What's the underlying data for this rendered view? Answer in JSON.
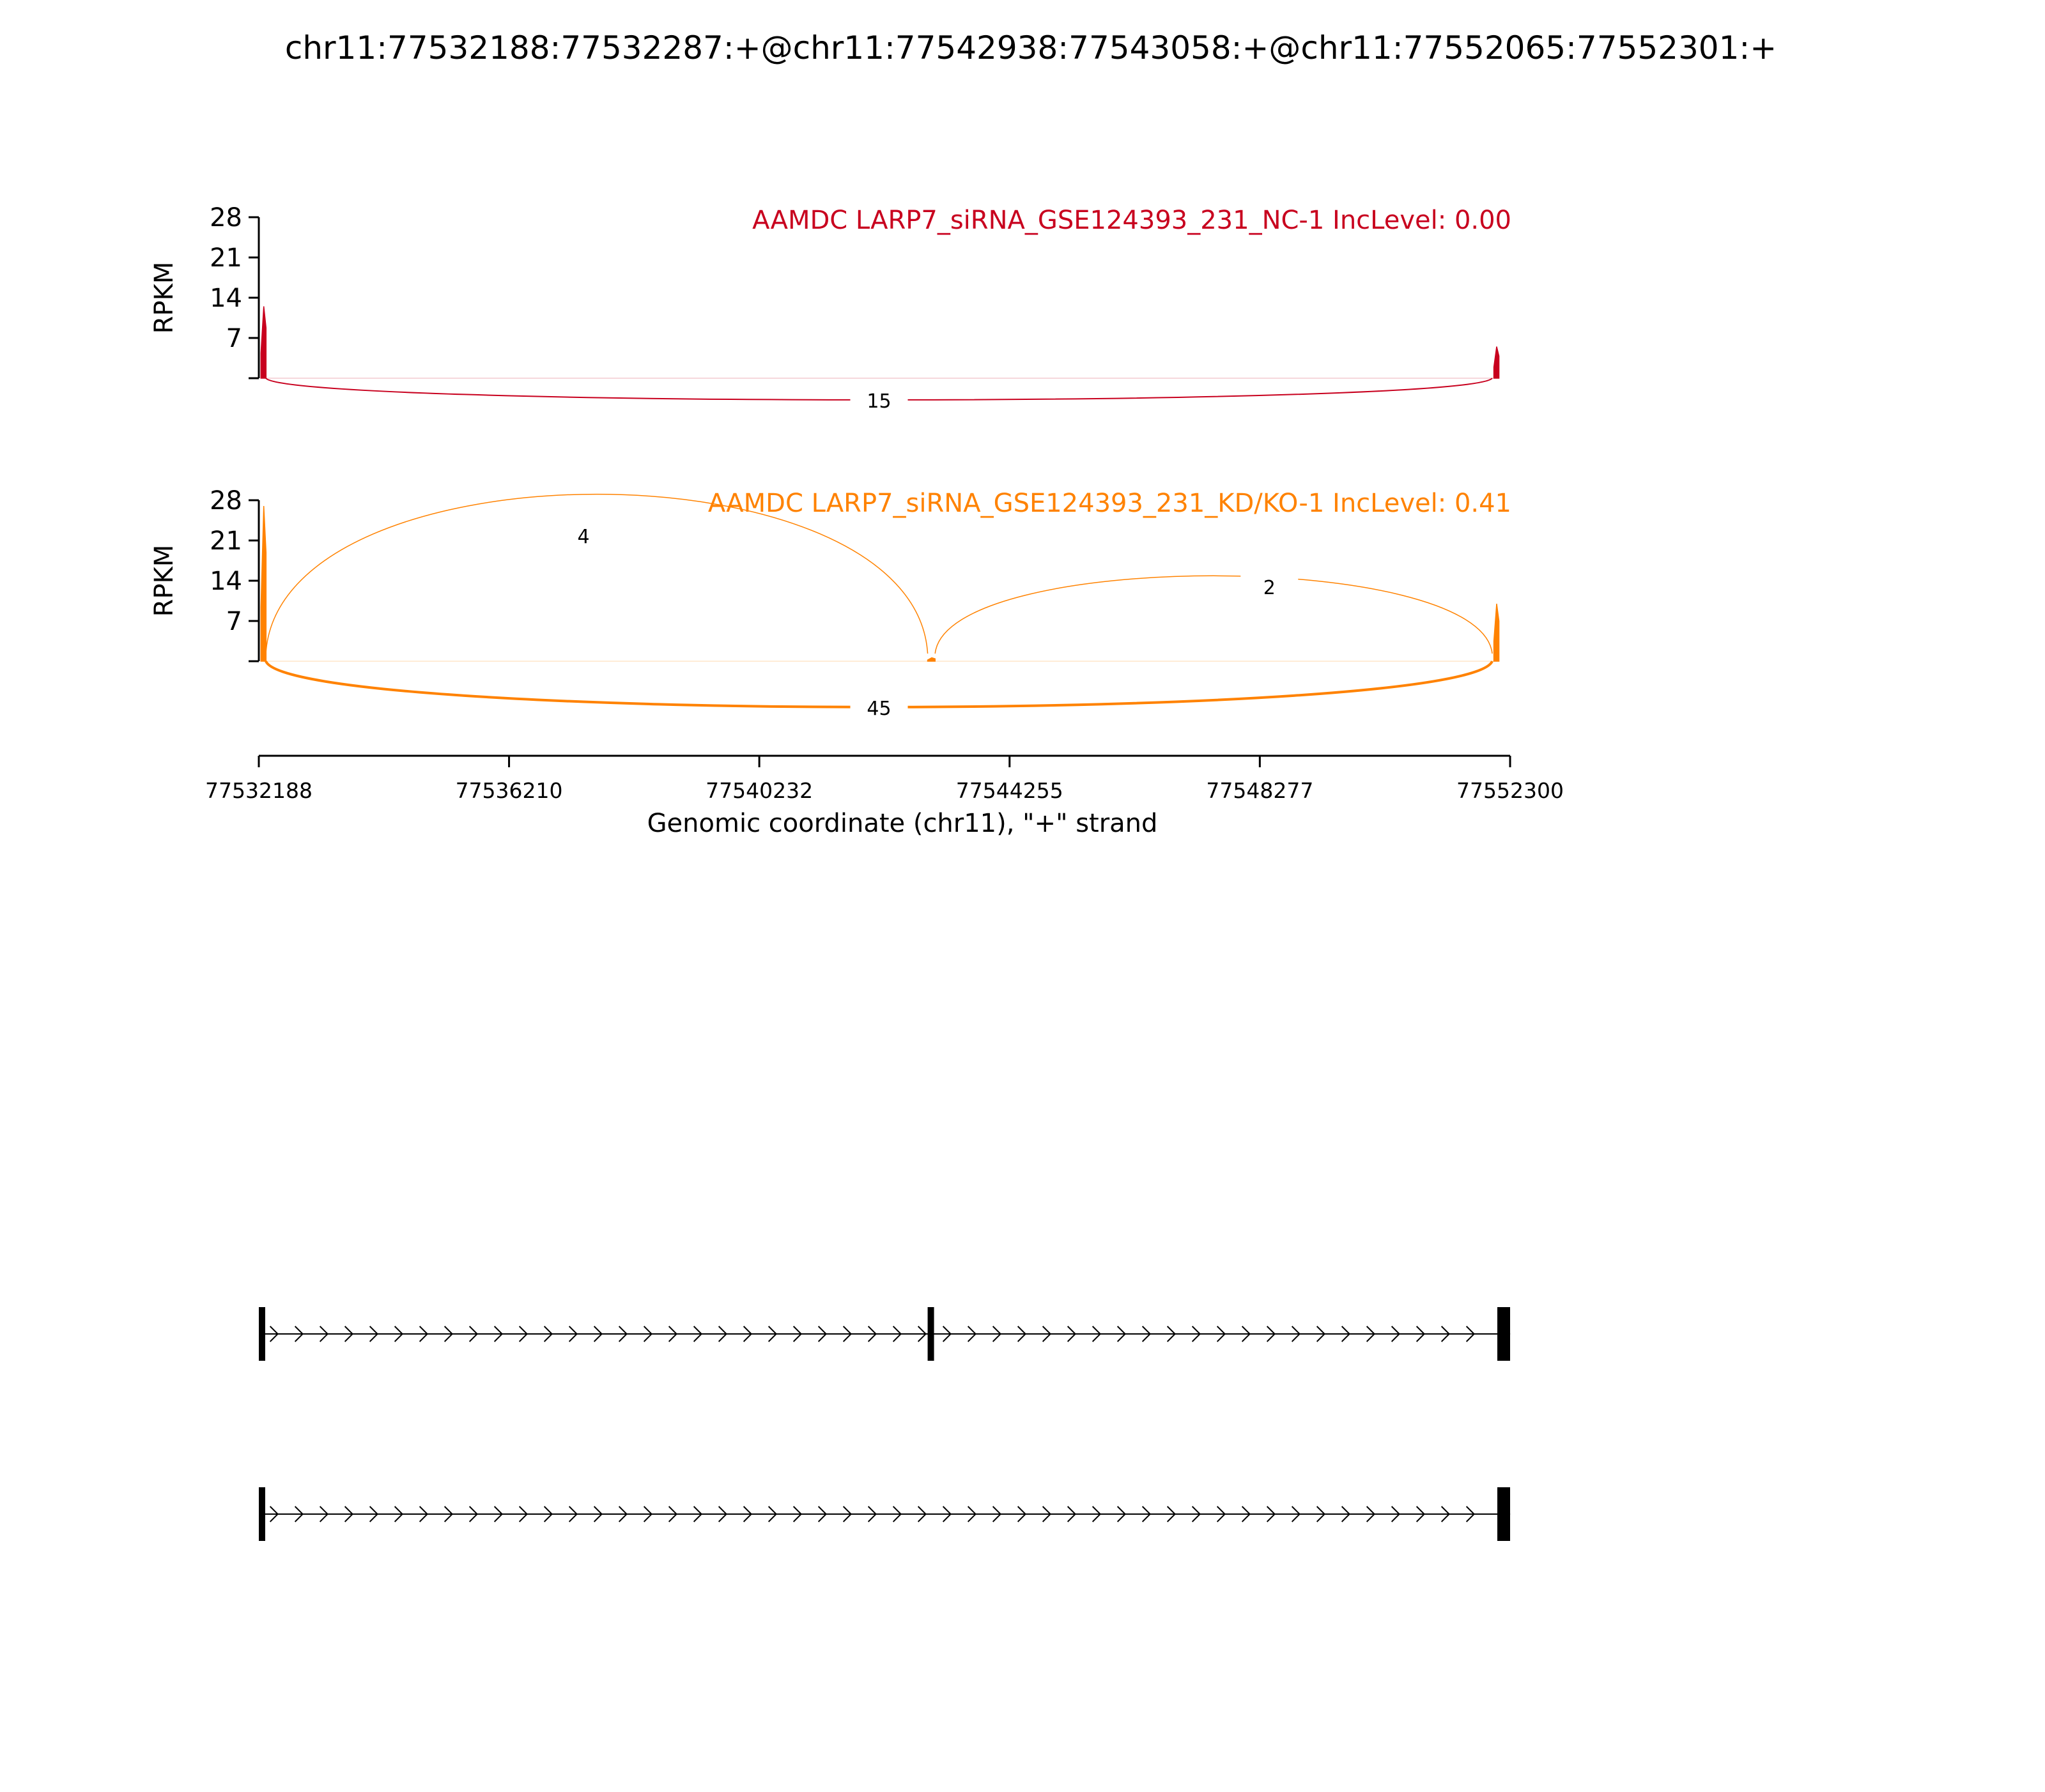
{
  "title": "chr11:77532188:77532287:+@chr11:77542938:77543058:+@chr11:77552065:77552301:+",
  "chart_data": [
    {
      "type": "sashimi",
      "label": "AAMDC LARP7_siRNA_GSE124393_231_NC-1 IncLevel: 0.00",
      "color": "#c8001e",
      "ylabel": "RPKM",
      "yticks": [
        7,
        14,
        21,
        28
      ],
      "ylim": [
        0,
        28
      ],
      "coverage": [
        {
          "start": 77532188,
          "end": 77532287,
          "peak": 12.5
        },
        {
          "start": 77552065,
          "end": 77552301,
          "peak": 5.5
        }
      ],
      "junctions": [
        {
          "start": 77532287,
          "end": 77552065,
          "count": 15,
          "side": "below"
        }
      ]
    },
    {
      "type": "sashimi",
      "label": "AAMDC LARP7_siRNA_GSE124393_231_KD/KO-1 IncLevel: 0.41",
      "color": "#ff8200",
      "ylabel": "RPKM",
      "yticks": [
        7,
        14,
        21,
        28
      ],
      "ylim": [
        0,
        28
      ],
      "coverage": [
        {
          "start": 77532188,
          "end": 77532287,
          "peak": 27
        },
        {
          "start": 77542938,
          "end": 77543058,
          "peak": 0.6
        },
        {
          "start": 77552065,
          "end": 77552301,
          "peak": 10
        }
      ],
      "junctions": [
        {
          "start": 77532287,
          "end": 77542938,
          "count": 4,
          "side": "above"
        },
        {
          "start": 77543058,
          "end": 77552065,
          "count": 2,
          "side": "above"
        },
        {
          "start": 77532287,
          "end": 77552065,
          "count": 45,
          "side": "below"
        }
      ]
    }
  ],
  "xaxis": {
    "label": "Genomic coordinate (chr11), \"+\" strand",
    "xlim": [
      77532188,
      77552300
    ],
    "ticks": [
      77532188,
      77536210,
      77540232,
      77544255,
      77548277,
      77552300
    ],
    "tick_labels": [
      "77532188",
      "77536210",
      "77540232",
      "77544255",
      "77548277",
      "77552300"
    ]
  },
  "isoforms": [
    {
      "exons": [
        [
          77532188,
          77532287
        ],
        [
          77542938,
          77543058
        ],
        [
          77552065,
          77552301
        ]
      ]
    },
    {
      "exons": [
        [
          77532188,
          77532287
        ],
        [
          77552065,
          77552301
        ]
      ]
    }
  ]
}
